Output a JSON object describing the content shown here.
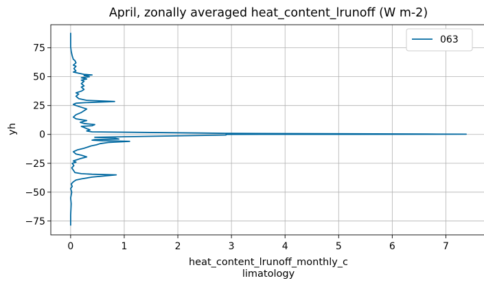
{
  "chart_data": {
    "type": "line",
    "title": "April, zonally averaged heat_content_lrunoff (W m-2)",
    "xlabel_lines": [
      "heat_content_lrunoff_monthly_c",
      "limatology"
    ],
    "ylabel": "yh",
    "xlim": [
      -0.37,
      7.75
    ],
    "ylim": [
      -87,
      95
    ],
    "xticks": [
      0,
      1,
      2,
      3,
      4,
      5,
      6,
      7
    ],
    "yticks": [
      -75,
      -50,
      -25,
      0,
      25,
      50,
      75
    ],
    "grid": true,
    "legend": "top-right",
    "series": [
      {
        "name": "063",
        "color": "#0068a0",
        "points": [
          [
            0.0,
            -79
          ],
          [
            0.0,
            -70
          ],
          [
            0.01,
            -60
          ],
          [
            0.0,
            -55
          ],
          [
            0.02,
            -50
          ],
          [
            0.0,
            -47
          ],
          [
            0.03,
            -45
          ],
          [
            0.01,
            -43
          ],
          [
            0.05,
            -41
          ],
          [
            0.1,
            -39.5
          ],
          [
            0.2,
            -38.5
          ],
          [
            0.4,
            -37
          ],
          [
            0.85,
            -35
          ],
          [
            0.4,
            -34.5
          ],
          [
            0.2,
            -34
          ],
          [
            0.08,
            -33
          ],
          [
            0.05,
            -31
          ],
          [
            0.02,
            -29
          ],
          [
            0.06,
            -27
          ],
          [
            0.03,
            -25
          ],
          [
            0.1,
            -24
          ],
          [
            0.05,
            -23
          ],
          [
            0.18,
            -21
          ],
          [
            0.3,
            -19.5
          ],
          [
            0.2,
            -18
          ],
          [
            0.1,
            -17
          ],
          [
            0.05,
            -15
          ],
          [
            0.12,
            -13.5
          ],
          [
            0.25,
            -12
          ],
          [
            0.38,
            -10
          ],
          [
            0.48,
            -9
          ],
          [
            0.55,
            -8
          ],
          [
            0.7,
            -7
          ],
          [
            1.1,
            -6
          ],
          [
            0.6,
            -5.5
          ],
          [
            0.4,
            -5
          ],
          [
            0.45,
            -4.5
          ],
          [
            0.9,
            -4
          ],
          [
            0.8,
            -3
          ],
          [
            0.45,
            -2.5
          ],
          [
            2.9,
            -0.5
          ],
          [
            2.9,
            0
          ],
          [
            7.38,
            0.2
          ],
          [
            6.65,
            0.3
          ],
          [
            2.9,
            0.9
          ],
          [
            2.4,
            1.2
          ],
          [
            1.2,
            1.8
          ],
          [
            0.4,
            2.2
          ],
          [
            0.3,
            3
          ],
          [
            0.36,
            4
          ],
          [
            0.3,
            5
          ],
          [
            0.25,
            6
          ],
          [
            0.2,
            7
          ],
          [
            0.4,
            7.5
          ],
          [
            0.45,
            8.5
          ],
          [
            0.25,
            9.5
          ],
          [
            0.18,
            10.5
          ],
          [
            0.3,
            12
          ],
          [
            0.1,
            13.5
          ],
          [
            0.05,
            15
          ],
          [
            0.1,
            17
          ],
          [
            0.2,
            19
          ],
          [
            0.25,
            20.5
          ],
          [
            0.3,
            22
          ],
          [
            0.2,
            23.5
          ],
          [
            0.1,
            25
          ],
          [
            0.05,
            26
          ],
          [
            0.1,
            27
          ],
          [
            0.25,
            27.5
          ],
          [
            0.82,
            28.5
          ],
          [
            0.3,
            29.5
          ],
          [
            0.15,
            31
          ],
          [
            0.1,
            33
          ],
          [
            0.15,
            35
          ],
          [
            0.1,
            36
          ],
          [
            0.2,
            37.5
          ],
          [
            0.25,
            39
          ],
          [
            0.2,
            41
          ],
          [
            0.25,
            42
          ],
          [
            0.2,
            44
          ],
          [
            0.25,
            46
          ],
          [
            0.2,
            47
          ],
          [
            0.3,
            48
          ],
          [
            0.2,
            49
          ],
          [
            0.35,
            50
          ],
          [
            0.25,
            51
          ],
          [
            0.4,
            51.5
          ],
          [
            0.25,
            52
          ],
          [
            0.15,
            53
          ],
          [
            0.05,
            54
          ],
          [
            0.1,
            55
          ],
          [
            0.06,
            57
          ],
          [
            0.1,
            59
          ],
          [
            0.05,
            60
          ],
          [
            0.1,
            62
          ],
          [
            0.08,
            64
          ],
          [
            0.05,
            65
          ],
          [
            0.03,
            68
          ],
          [
            0.01,
            72
          ],
          [
            0.0,
            76
          ],
          [
            0.0,
            80
          ],
          [
            0.0,
            88
          ]
        ]
      }
    ]
  }
}
